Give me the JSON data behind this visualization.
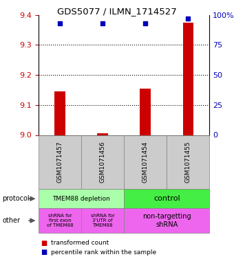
{
  "title": "GDS5077 / ILMN_1714527",
  "samples": [
    "GSM1071457",
    "GSM1071456",
    "GSM1071454",
    "GSM1071455"
  ],
  "red_values": [
    9.145,
    9.005,
    9.155,
    9.375
  ],
  "blue_values_pct": [
    93,
    93,
    93,
    97
  ],
  "ylim_left": [
    9.0,
    9.4
  ],
  "yticks_left": [
    9.0,
    9.1,
    9.2,
    9.3,
    9.4
  ],
  "yticks_right": [
    0,
    25,
    50,
    75,
    100
  ],
  "ylim_right": [
    0,
    100
  ],
  "bar_color": "#cc0000",
  "dot_color": "#0000bb",
  "label_color_left": "#cc0000",
  "label_color_right": "#0000bb",
  "grid_linestyle": ":",
  "grid_linewidth": 0.8,
  "protocol_left_label": "TMEM88 depletion",
  "protocol_left_color": "#aaffaa",
  "protocol_right_label": "control",
  "protocol_right_color": "#44ee44",
  "other_col0_label": "shRNA for\nfirst exon\nof TMEM88",
  "other_col1_label": "shRNA for\n3'UTR of\nTMEM88",
  "other_col23_label": "non-targetting\nshRNA",
  "other_color": "#ee66ee",
  "sample_box_color": "#cccccc",
  "legend_red_label": "transformed count",
  "legend_blue_label": "percentile rank within the sample"
}
